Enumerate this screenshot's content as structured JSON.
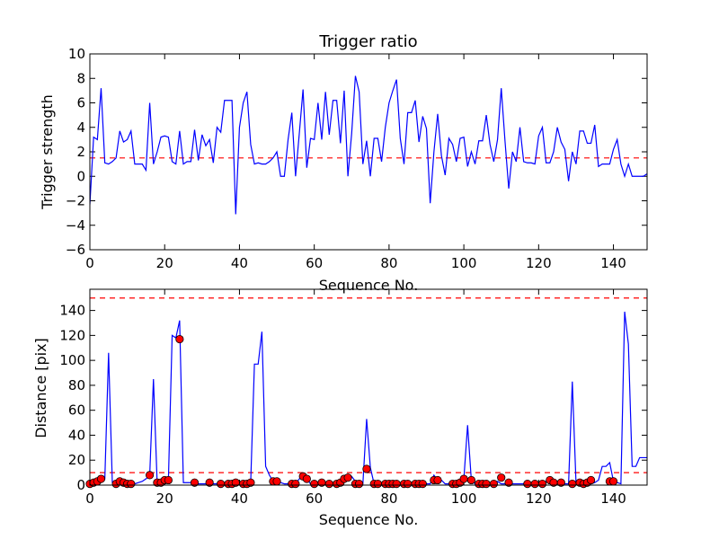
{
  "colors": {
    "line": "#0000ff",
    "threshold": "#ff0000",
    "marker_fill": "#ff0000",
    "marker_edge": "#000000"
  },
  "chart_data": [
    {
      "type": "line",
      "title": "Trigger ratio",
      "xlabel": "Sequence No.",
      "ylabel": "Trigger strength",
      "xlim": [
        0,
        149
      ],
      "ylim": [
        -6,
        10
      ],
      "xticks": [
        "0",
        "20",
        "40",
        "60",
        "80",
        "100",
        "120",
        "140"
      ],
      "yticks": [
        "−6",
        "−4",
        "−2",
        "0",
        "2",
        "4",
        "6",
        "8",
        "10"
      ],
      "threshold": 1.5,
      "series": [
        {
          "values": [
            -2.3,
            3.2,
            3.0,
            7.2,
            1.1,
            1.0,
            1.2,
            1.5,
            3.7,
            2.8,
            3.0,
            3.7,
            1.0,
            1.0,
            1.0,
            0.5,
            6.0,
            1.0,
            2.0,
            3.2,
            3.3,
            3.2,
            1.2,
            1.0,
            3.7,
            1.0,
            1.2,
            1.2,
            3.8,
            1.3,
            3.4,
            2.5,
            3.0,
            1.1,
            4.0,
            3.6,
            6.2,
            6.2,
            6.2,
            -3.1,
            4.0,
            6.0,
            6.9,
            2.6,
            1.0,
            1.1,
            1.0,
            1.0,
            1.2,
            1.5,
            2.0,
            0.0,
            0.0,
            3.0,
            5.2,
            0.0,
            3.5,
            7.1,
            0.7,
            3.1,
            3.0,
            6.0,
            3.0,
            6.9,
            3.4,
            6.2,
            6.2,
            2.7,
            7.0,
            0.0,
            3.5,
            8.2,
            6.9,
            1.0,
            2.9,
            0.0,
            3.1,
            3.1,
            1.2,
            4.0,
            6.0,
            7.0,
            7.9,
            3.1,
            1.0,
            5.2,
            5.2,
            6.2,
            2.8,
            4.9,
            3.9,
            -2.2,
            2.0,
            5.1,
            1.7,
            0.1,
            3.1,
            2.6,
            1.2,
            3.1,
            3.2,
            0.8,
            2.0,
            1.0,
            2.9,
            2.9,
            5.0,
            2.6,
            1.2,
            3.0,
            7.2,
            2.9,
            -1.0,
            2.0,
            1.2,
            4.0,
            1.2,
            1.1,
            1.1,
            1.0,
            3.3,
            4.0,
            1.1,
            1.1,
            2.0,
            4.0,
            2.8,
            2.2,
            -0.4,
            2.0,
            1.0,
            3.7,
            3.7,
            2.7,
            2.7,
            4.2,
            0.8,
            1.0,
            1.0,
            1.0,
            2.2,
            3.0,
            1.0,
            0.0,
            1.0,
            0.0,
            0.0,
            0.0,
            0.0,
            0.2,
            0.0
          ]
        }
      ]
    },
    {
      "type": "line",
      "title": "",
      "xlabel": "Sequence No.",
      "ylabel": "Distance [pix]",
      "xlim": [
        0,
        149
      ],
      "ylim": [
        0,
        157
      ],
      "xticks": [
        "0",
        "20",
        "40",
        "60",
        "80",
        "100",
        "120",
        "140"
      ],
      "yticks": [
        "0",
        "20",
        "40",
        "60",
        "80",
        "100",
        "120",
        "140"
      ],
      "thresholds": [
        150,
        10
      ],
      "series": [
        {
          "values": [
            1,
            2,
            4,
            5,
            5,
            106,
            2,
            1,
            3,
            2,
            1,
            1,
            1,
            2,
            3,
            5,
            8,
            85,
            1,
            2,
            3,
            4,
            120,
            118,
            132,
            2,
            2,
            2,
            1,
            1,
            1,
            1,
            2,
            1,
            1,
            1,
            1,
            1,
            2,
            1,
            1,
            1,
            1,
            2,
            97,
            97,
            123,
            15,
            8,
            3,
            3,
            2,
            1,
            1,
            1,
            1,
            5,
            7,
            5,
            1,
            1,
            1,
            1,
            1,
            1,
            2,
            3,
            3,
            5,
            6,
            7,
            3,
            2,
            1,
            53,
            14,
            1,
            1,
            1,
            1,
            1,
            1,
            1,
            1,
            1,
            1,
            1,
            1,
            1,
            1,
            1,
            1,
            8,
            4,
            4,
            1,
            1,
            1,
            1,
            2,
            5,
            48,
            4,
            1,
            1,
            1,
            1,
            1,
            2,
            3,
            1,
            1,
            1,
            1,
            1,
            1,
            1,
            1,
            1,
            1,
            1,
            1,
            3,
            2,
            1,
            2,
            1,
            1,
            1,
            83,
            1,
            1,
            1,
            1,
            1,
            2,
            4,
            15,
            15,
            18,
            3,
            2,
            1,
            139,
            113,
            15,
            15,
            22,
            22,
            22,
            27
          ]
        },
        {
          "name_hidden": "",
          "markers": [
            [
              0,
              1
            ],
            [
              1,
              2
            ],
            [
              2,
              3
            ],
            [
              3,
              5
            ],
            [
              7,
              1
            ],
            [
              8,
              3
            ],
            [
              9,
              2
            ],
            [
              10,
              1
            ],
            [
              11,
              1
            ],
            [
              16,
              8
            ],
            [
              18,
              2
            ],
            [
              19,
              2
            ],
            [
              20,
              4
            ],
            [
              21,
              4
            ],
            [
              24,
              117
            ],
            [
              28,
              2
            ],
            [
              32,
              2
            ],
            [
              35,
              1
            ],
            [
              37,
              1
            ],
            [
              38,
              1
            ],
            [
              39,
              2
            ],
            [
              41,
              1
            ],
            [
              42,
              1
            ],
            [
              43,
              2
            ],
            [
              49,
              3
            ],
            [
              50,
              3
            ],
            [
              54,
              1
            ],
            [
              55,
              1
            ],
            [
              57,
              7
            ],
            [
              58,
              5
            ],
            [
              60,
              1
            ],
            [
              62,
              2
            ],
            [
              64,
              1
            ],
            [
              66,
              1
            ],
            [
              67,
              2
            ],
            [
              68,
              5
            ],
            [
              69,
              6
            ],
            [
              71,
              1
            ],
            [
              72,
              1
            ],
            [
              74,
              13
            ],
            [
              76,
              1
            ],
            [
              77,
              1
            ],
            [
              79,
              1
            ],
            [
              80,
              1
            ],
            [
              81,
              1
            ],
            [
              82,
              1
            ],
            [
              84,
              1
            ],
            [
              85,
              1
            ],
            [
              87,
              1
            ],
            [
              88,
              1
            ],
            [
              89,
              1
            ],
            [
              92,
              4
            ],
            [
              93,
              4
            ],
            [
              97,
              1
            ],
            [
              98,
              1
            ],
            [
              99,
              2
            ],
            [
              100,
              5
            ],
            [
              102,
              4
            ],
            [
              104,
              1
            ],
            [
              105,
              1
            ],
            [
              106,
              1
            ],
            [
              108,
              1
            ],
            [
              110,
              6
            ],
            [
              112,
              2
            ],
            [
              117,
              1
            ],
            [
              119,
              1
            ],
            [
              121,
              1
            ],
            [
              123,
              4
            ],
            [
              124,
              2
            ],
            [
              126,
              2
            ],
            [
              129,
              1
            ],
            [
              131,
              2
            ],
            [
              132,
              1
            ],
            [
              133,
              2
            ],
            [
              134,
              4
            ],
            [
              139,
              3
            ],
            [
              140,
              3
            ]
          ]
        }
      ]
    }
  ]
}
